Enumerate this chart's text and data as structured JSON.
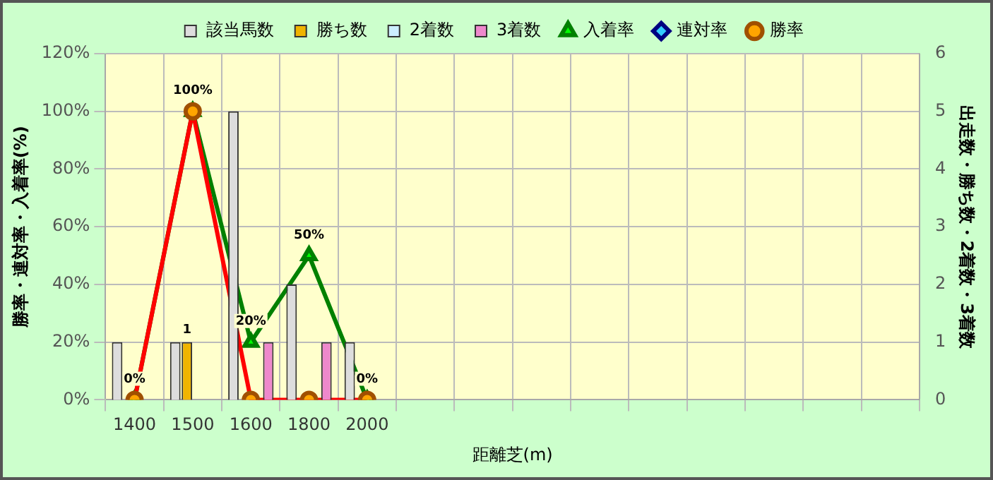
{
  "chart_data": {
    "type": "bar",
    "xlabel": "距離芝(m)",
    "ylabel": "勝率・連対率・入着率(%)",
    "y2label": "出走数・勝ち数・2着数・3着数",
    "categories": [
      "1400",
      "1500",
      "1600",
      "1800",
      "2000",
      null,
      null,
      null,
      null,
      null,
      null,
      null,
      null,
      null
    ],
    "series": [
      {
        "name": "該当馬数",
        "axis": "y2",
        "color": "#dddddd",
        "values": [
          1,
          1,
          5,
          2,
          1,
          null,
          null,
          null,
          null,
          null,
          null,
          null,
          null,
          null
        ]
      },
      {
        "name": "勝ち数",
        "axis": "y2",
        "color": "#f0b400",
        "values": [
          0,
          1,
          0,
          0,
          0,
          null,
          null,
          null,
          null,
          null,
          null,
          null,
          null,
          null
        ],
        "value_labels": [
          null,
          "1",
          null,
          null,
          null,
          null,
          null,
          null,
          null,
          null,
          null,
          null,
          null,
          null
        ]
      },
      {
        "name": "2着数",
        "axis": "y2",
        "color": "#cceeff",
        "values": [
          0,
          0,
          0,
          0,
          0,
          null,
          null,
          null,
          null,
          null,
          null,
          null,
          null,
          null
        ]
      },
      {
        "name": "3着数",
        "axis": "y2",
        "color": "#ee88cc",
        "values": [
          0,
          0,
          1,
          1,
          0,
          null,
          null,
          null,
          null,
          null,
          null,
          null,
          null,
          null
        ]
      },
      {
        "name": "入着率",
        "type": "line",
        "axis": "y",
        "color": "#008000",
        "marker": "triangle",
        "values": [
          0,
          100,
          20,
          50,
          0,
          null,
          null,
          null,
          null,
          null,
          null,
          null,
          null,
          null
        ],
        "value_labels": [
          "0%",
          "100%",
          "20%",
          "50%",
          "0%",
          null,
          null,
          null,
          null,
          null,
          null,
          null,
          null,
          null
        ]
      },
      {
        "name": "連対率",
        "type": "line",
        "axis": "y",
        "color": "#000080",
        "marker": "diamond",
        "values": [
          null,
          null,
          null,
          null,
          null,
          null,
          null,
          null,
          null,
          null,
          null,
          null,
          null,
          null
        ]
      },
      {
        "name": "勝率",
        "type": "line",
        "axis": "y",
        "color": "#ff0000",
        "marker": "circle",
        "values": [
          0,
          100,
          0,
          0,
          0,
          null,
          null,
          null,
          null,
          null,
          null,
          null,
          null,
          null
        ]
      }
    ],
    "ylim": [
      0,
      120
    ],
    "yticks": [
      {
        "value": 0,
        "label": "0%"
      },
      {
        "value": 20,
        "label": "20%"
      },
      {
        "value": 40,
        "label": "40%"
      },
      {
        "value": 60,
        "label": "60%"
      },
      {
        "value": 80,
        "label": "80%"
      },
      {
        "value": 100,
        "label": "100%"
      },
      {
        "value": 120,
        "label": "120%"
      }
    ],
    "y2lim": [
      0,
      6
    ],
    "y2ticks": [
      0,
      1,
      2,
      3,
      4,
      5,
      6
    ],
    "grid": true,
    "legend": "top"
  }
}
